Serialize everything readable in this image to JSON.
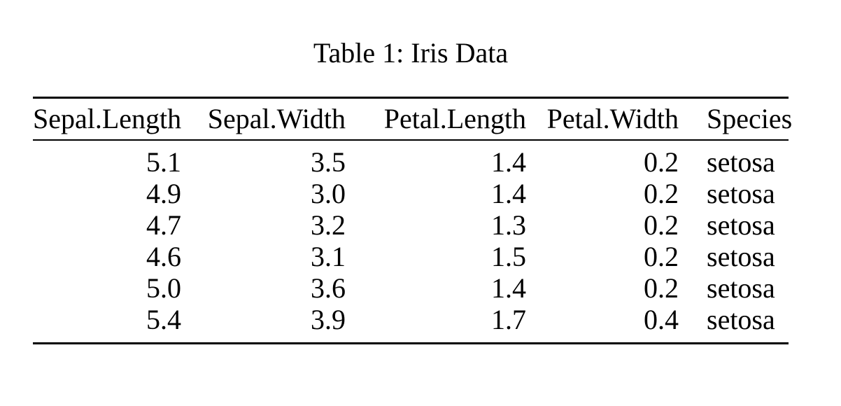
{
  "caption": "Table 1: Iris Data",
  "table": {
    "columns": [
      "Sepal.Length",
      "Sepal.Width",
      "Petal.Length",
      "Petal.Width",
      "Species"
    ],
    "rows": [
      [
        "5.1",
        "3.5",
        "1.4",
        "0.2",
        "setosa"
      ],
      [
        "4.9",
        "3.0",
        "1.4",
        "0.2",
        "setosa"
      ],
      [
        "4.7",
        "3.2",
        "1.3",
        "0.2",
        "setosa"
      ],
      [
        "4.6",
        "3.1",
        "1.5",
        "0.2",
        "setosa"
      ],
      [
        "5.0",
        "3.6",
        "1.4",
        "0.2",
        "setosa"
      ],
      [
        "5.4",
        "3.9",
        "1.7",
        "0.4",
        "setosa"
      ]
    ]
  },
  "colors": {
    "text": "#000000",
    "background": "#ffffff",
    "rule": "#000000"
  }
}
